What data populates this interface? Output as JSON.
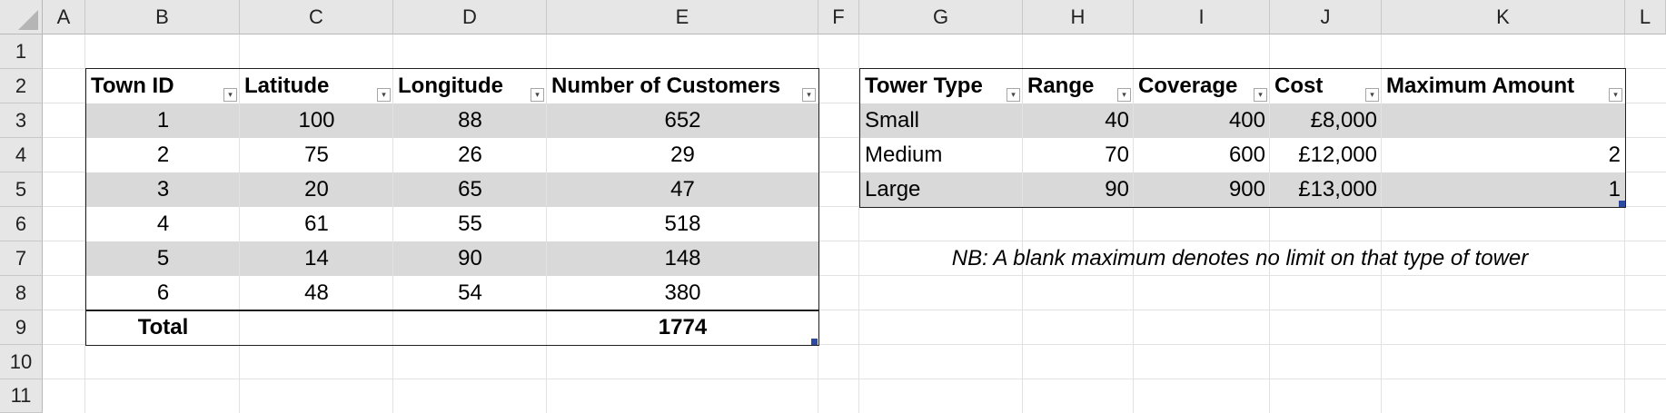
{
  "columns": [
    "A",
    "B",
    "C",
    "D",
    "E",
    "F",
    "G",
    "H",
    "I",
    "J",
    "K",
    "L"
  ],
  "rows": [
    "1",
    "2",
    "3",
    "4",
    "5",
    "6",
    "7",
    "8",
    "9",
    "10",
    "11"
  ],
  "towns_table": {
    "headers": [
      "Town ID",
      "Latitude",
      "Longitude",
      "Number of Customers"
    ],
    "rows": [
      [
        "1",
        "100",
        "88",
        "652"
      ],
      [
        "2",
        "75",
        "26",
        "29"
      ],
      [
        "3",
        "20",
        "65",
        "47"
      ],
      [
        "4",
        "61",
        "55",
        "518"
      ],
      [
        "5",
        "14",
        "90",
        "148"
      ],
      [
        "6",
        "48",
        "54",
        "380"
      ]
    ],
    "total_label": "Total",
    "total_value": "1774"
  },
  "towers_table": {
    "headers": [
      "Tower Type",
      "Range",
      "Coverage",
      "Cost",
      "Maximum Amount"
    ],
    "rows": [
      [
        "Small",
        "40",
        "400",
        "£8,000",
        ""
      ],
      [
        "Medium",
        "70",
        "600",
        "£12,000",
        "2"
      ],
      [
        "Large",
        "90",
        "900",
        "£13,000",
        "1"
      ]
    ]
  },
  "note": "NB: A blank maximum denotes no limit on that type of tower",
  "colors": {
    "band": "#d9d9d9",
    "header_bg": "#e6e6e6",
    "grid": "#e2e2e2"
  }
}
